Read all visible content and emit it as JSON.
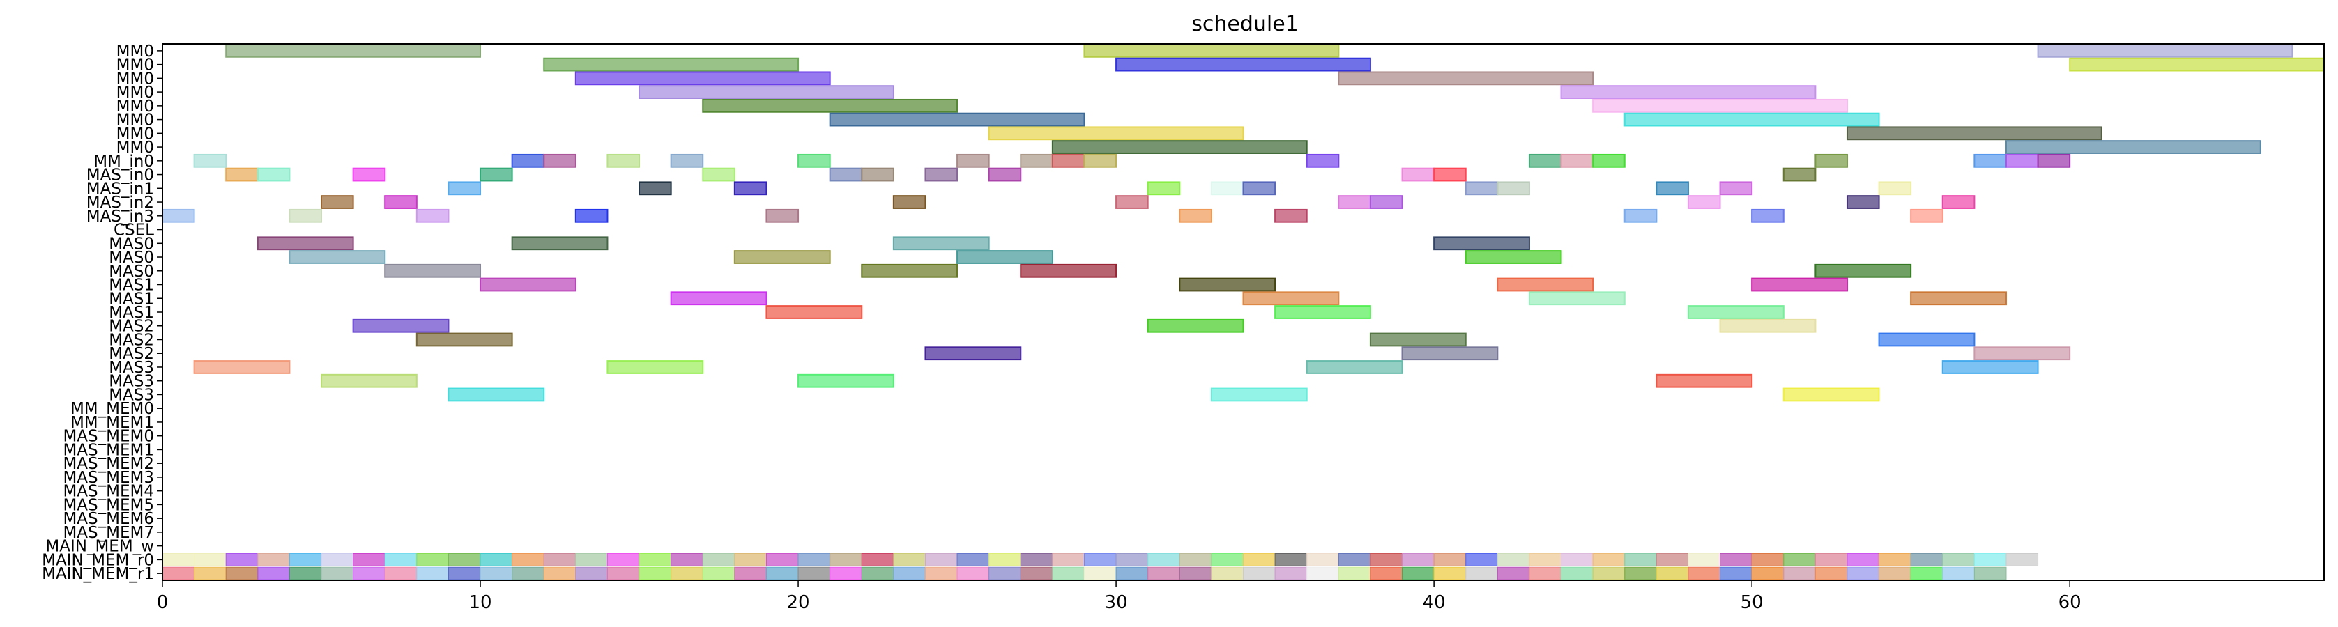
{
  "chart_data": {
    "type": "gantt",
    "title": "schedule1",
    "xlabel": "",
    "ylabel": "",
    "xlim": [
      0,
      68
    ],
    "xticks": [
      0,
      10,
      20,
      30,
      40,
      50,
      60
    ],
    "grid": false,
    "rows": [
      "MM0",
      "MM0",
      "MM0",
      "MM0",
      "MM0",
      "MM0",
      "MM0",
      "MM0",
      "MM_in0",
      "MAS_in0",
      "MAS_in1",
      "MAS_in2",
      "MAS_in3",
      "CSEL",
      "MAS0",
      "MAS0",
      "MAS0",
      "MAS1",
      "MAS1",
      "MAS1",
      "MAS2",
      "MAS2",
      "MAS2",
      "MAS3",
      "MAS3",
      "MAS3",
      "MM_MEM0",
      "MM_MEM1",
      "MAS_MEM0",
      "MAS_MEM1",
      "MAS_MEM2",
      "MAS_MEM3",
      "MAS_MEM4",
      "MAS_MEM5",
      "MAS_MEM6",
      "MAS_MEM7",
      "MAIN_MEM_w",
      "MAIN_MEM_r0",
      "MAIN_MEM_r1"
    ],
    "tasks": [
      {
        "row": 0,
        "start": 2,
        "end": 10,
        "color": "#88aa77"
      },
      {
        "row": 0,
        "start": 29,
        "end": 37,
        "color": "#b5cc44"
      },
      {
        "row": 0,
        "start": 59,
        "end": 67,
        "color": "#a8a8d8"
      },
      {
        "row": 1,
        "start": 12,
        "end": 20,
        "color": "#6ca855"
      },
      {
        "row": 1,
        "start": 30,
        "end": 38,
        "color": "#3434dd"
      },
      {
        "row": 1,
        "start": 60,
        "end": 68,
        "color": "#c8e045"
      },
      {
        "row": 2,
        "start": 13,
        "end": 21,
        "color": "#6a3ee8"
      },
      {
        "row": 2,
        "start": 37,
        "end": 45,
        "color": "#aa8888"
      },
      {
        "row": 3,
        "start": 15,
        "end": 23,
        "color": "#a48ae0"
      },
      {
        "row": 3,
        "start": 44,
        "end": 52,
        "color": "#c890ee"
      },
      {
        "row": 4,
        "start": 17,
        "end": 25,
        "color": "#558833"
      },
      {
        "row": 4,
        "start": 45,
        "end": 53,
        "color": "#f8b8f0"
      },
      {
        "row": 5,
        "start": 21,
        "end": 29,
        "color": "#3b6a99"
      },
      {
        "row": 5,
        "start": 46,
        "end": 54,
        "color": "#44e0dd"
      },
      {
        "row": 6,
        "start": 26,
        "end": 34,
        "color": "#e6d44c"
      },
      {
        "row": 6,
        "start": 53,
        "end": 61,
        "color": "#555f44"
      },
      {
        "row": 7,
        "start": 28,
        "end": 36,
        "color": "#3a6632"
      },
      {
        "row": 7,
        "start": 58,
        "end": 66,
        "color": "#5a8aa8"
      },
      {
        "row": 8,
        "start": 1,
        "end": 2,
        "color": "#a8e0d8"
      },
      {
        "row": 8,
        "start": 11,
        "end": 12,
        "color": "#3355dd"
      },
      {
        "row": 8,
        "start": 12,
        "end": 13,
        "color": "#aa5599"
      },
      {
        "row": 8,
        "start": 14,
        "end": 15,
        "color": "#b8e088"
      },
      {
        "row": 8,
        "start": 16,
        "end": 17,
        "color": "#88a8cc"
      },
      {
        "row": 8,
        "start": 20,
        "end": 21,
        "color": "#55dd77"
      },
      {
        "row": 8,
        "start": 25,
        "end": 26,
        "color": "#a88a88"
      },
      {
        "row": 8,
        "start": 27,
        "end": 28,
        "color": "#aa9988"
      },
      {
        "row": 8,
        "start": 28,
        "end": 29,
        "color": "#cc5555"
      },
      {
        "row": 8,
        "start": 29,
        "end": 30,
        "color": "#bbb055"
      },
      {
        "row": 8,
        "start": 36,
        "end": 37,
        "color": "#7744ee"
      },
      {
        "row": 8,
        "start": 43,
        "end": 44,
        "color": "#44aa77"
      },
      {
        "row": 8,
        "start": 44,
        "end": 45,
        "color": "#dd99aa"
      },
      {
        "row": 8,
        "start": 45,
        "end": 46,
        "color": "#44dd33"
      },
      {
        "row": 8,
        "start": 52,
        "end": 53,
        "color": "#779944"
      },
      {
        "row": 8,
        "start": 57,
        "end": 58,
        "color": "#5599ee"
      },
      {
        "row": 8,
        "start": 58,
        "end": 59,
        "color": "#aa55ee"
      },
      {
        "row": 8,
        "start": 59,
        "end": 60,
        "color": "#9933aa"
      },
      {
        "row": 9,
        "start": 2,
        "end": 3,
        "color": "#e8aa55"
      },
      {
        "row": 9,
        "start": 3,
        "end": 4,
        "color": "#88eecc"
      },
      {
        "row": 9,
        "start": 6,
        "end": 7,
        "color": "#ee44ee"
      },
      {
        "row": 9,
        "start": 10,
        "end": 11,
        "color": "#33aa77"
      },
      {
        "row": 9,
        "start": 17,
        "end": 18,
        "color": "#aaee77"
      },
      {
        "row": 9,
        "start": 21,
        "end": 22,
        "color": "#7788bb"
      },
      {
        "row": 9,
        "start": 22,
        "end": 23,
        "color": "#998877"
      },
      {
        "row": 9,
        "start": 24,
        "end": 25,
        "color": "#886699"
      },
      {
        "row": 9,
        "start": 26,
        "end": 27,
        "color": "#aa44aa"
      },
      {
        "row": 9,
        "start": 39,
        "end": 40,
        "color": "#ee88dd"
      },
      {
        "row": 9,
        "start": 40,
        "end": 41,
        "color": "#ff4455"
      },
      {
        "row": 9,
        "start": 51,
        "end": 52,
        "color": "#667733"
      },
      {
        "row": 10,
        "start": 9,
        "end": 10,
        "color": "#55aaee"
      },
      {
        "row": 10,
        "start": 15,
        "end": 16,
        "color": "#223344"
      },
      {
        "row": 10,
        "start": 18,
        "end": 19,
        "color": "#3322bb"
      },
      {
        "row": 10,
        "start": 31,
        "end": 32,
        "color": "#88ee44"
      },
      {
        "row": 10,
        "start": 33,
        "end": 34,
        "color": "#ddf8ee"
      },
      {
        "row": 10,
        "start": 34,
        "end": 35,
        "color": "#5566bb"
      },
      {
        "row": 10,
        "start": 41,
        "end": 42,
        "color": "#8899cc"
      },
      {
        "row": 10,
        "start": 42,
        "end": 43,
        "color": "#bbccbb"
      },
      {
        "row": 10,
        "start": 47,
        "end": 48,
        "color": "#3388bb"
      },
      {
        "row": 10,
        "start": 49,
        "end": 50,
        "color": "#cc66dd"
      },
      {
        "row": 10,
        "start": 54,
        "end": 55,
        "color": "#eeeeaa"
      },
      {
        "row": 11,
        "start": 5,
        "end": 6,
        "color": "#996633"
      },
      {
        "row": 11,
        "start": 7,
        "end": 8,
        "color": "#cc33cc"
      },
      {
        "row": 11,
        "start": 23,
        "end": 24,
        "color": "#7a5522"
      },
      {
        "row": 11,
        "start": 30,
        "end": 31,
        "color": "#cc6677"
      },
      {
        "row": 11,
        "start": 37,
        "end": 38,
        "color": "#dd77dd"
      },
      {
        "row": 11,
        "start": 38,
        "end": 39,
        "color": "#aa55dd"
      },
      {
        "row": 11,
        "start": 48,
        "end": 49,
        "color": "#ee99ee"
      },
      {
        "row": 11,
        "start": 53,
        "end": 54,
        "color": "#443377"
      },
      {
        "row": 11,
        "start": 56,
        "end": 57,
        "color": "#ee44aa"
      },
      {
        "row": 12,
        "start": 0,
        "end": 1,
        "color": "#99bbee"
      },
      {
        "row": 12,
        "start": 4,
        "end": 5,
        "color": "#ccddbb"
      },
      {
        "row": 12,
        "start": 8,
        "end": 9,
        "color": "#cc99ee"
      },
      {
        "row": 12,
        "start": 13,
        "end": 14,
        "color": "#2233ee"
      },
      {
        "row": 12,
        "start": 19,
        "end": 20,
        "color": "#aa7788"
      },
      {
        "row": 12,
        "start": 32,
        "end": 33,
        "color": "#ee9955"
      },
      {
        "row": 12,
        "start": 35,
        "end": 36,
        "color": "#bb4466"
      },
      {
        "row": 12,
        "start": 46,
        "end": 47,
        "color": "#77aaee"
      },
      {
        "row": 12,
        "start": 50,
        "end": 51,
        "color": "#6677ee"
      },
      {
        "row": 12,
        "start": 55,
        "end": 56,
        "color": "#ff9988"
      },
      {
        "row": 14,
        "start": 3,
        "end": 6,
        "color": "#884477"
      },
      {
        "row": 14,
        "start": 11,
        "end": 14,
        "color": "#446644"
      },
      {
        "row": 14,
        "start": 23,
        "end": 26,
        "color": "#66aaaa"
      },
      {
        "row": 14,
        "start": 40,
        "end": 43,
        "color": "#334466"
      },
      {
        "row": 15,
        "start": 4,
        "end": 7,
        "color": "#77aabb"
      },
      {
        "row": 15,
        "start": 18,
        "end": 21,
        "color": "#999944"
      },
      {
        "row": 15,
        "start": 25,
        "end": 28,
        "color": "#449999"
      },
      {
        "row": 15,
        "start": 41,
        "end": 44,
        "color": "#44cc22"
      },
      {
        "row": 16,
        "start": 7,
        "end": 10,
        "color": "#888899"
      },
      {
        "row": 16,
        "start": 22,
        "end": 25,
        "color": "#667722"
      },
      {
        "row": 16,
        "start": 27,
        "end": 30,
        "color": "#992233"
      },
      {
        "row": 16,
        "start": 52,
        "end": 55,
        "color": "#337722"
      },
      {
        "row": 17,
        "start": 10,
        "end": 13,
        "color": "#bb44bb"
      },
      {
        "row": 17,
        "start": 32,
        "end": 35,
        "color": "#444411"
      },
      {
        "row": 17,
        "start": 42,
        "end": 45,
        "color": "#ee6644"
      },
      {
        "row": 17,
        "start": 50,
        "end": 53,
        "color": "#cc22aa"
      },
      {
        "row": 18,
        "start": 16,
        "end": 19,
        "color": "#cc33ee"
      },
      {
        "row": 18,
        "start": 34,
        "end": 37,
        "color": "#dd8844"
      },
      {
        "row": 18,
        "start": 43,
        "end": 46,
        "color": "#99eebb"
      },
      {
        "row": 18,
        "start": 55,
        "end": 58,
        "color": "#cc7733"
      },
      {
        "row": 19,
        "start": 19,
        "end": 22,
        "color": "#ee5544"
      },
      {
        "row": 19,
        "start": 35,
        "end": 38,
        "color": "#55ee55"
      },
      {
        "row": 19,
        "start": 48,
        "end": 51,
        "color": "#77ee99"
      },
      {
        "row": 20,
        "start": 6,
        "end": 9,
        "color": "#6644cc"
      },
      {
        "row": 20,
        "start": 31,
        "end": 34,
        "color": "#44cc22"
      },
      {
        "row": 20,
        "start": 49,
        "end": 52,
        "color": "#e6e0a0"
      },
      {
        "row": 21,
        "start": 8,
        "end": 11,
        "color": "#776633"
      },
      {
        "row": 21,
        "start": 38,
        "end": 41,
        "color": "#557744"
      },
      {
        "row": 21,
        "start": 54,
        "end": 57,
        "color": "#3377ee"
      },
      {
        "row": 22,
        "start": 24,
        "end": 27,
        "color": "#442299"
      },
      {
        "row": 22,
        "start": 39,
        "end": 42,
        "color": "#777799"
      },
      {
        "row": 22,
        "start": 57,
        "end": 60,
        "color": "#cc99aa"
      },
      {
        "row": 23,
        "start": 1,
        "end": 4,
        "color": "#f39a7a"
      },
      {
        "row": 23,
        "start": 14,
        "end": 17,
        "color": "#99ee55"
      },
      {
        "row": 23,
        "start": 36,
        "end": 39,
        "color": "#66bbaa"
      },
      {
        "row": 23,
        "start": 56,
        "end": 59,
        "color": "#44aaee"
      },
      {
        "row": 24,
        "start": 5,
        "end": 8,
        "color": "#bbdd77"
      },
      {
        "row": 24,
        "start": 20,
        "end": 23,
        "color": "#55ee77"
      },
      {
        "row": 24,
        "start": 47,
        "end": 50,
        "color": "#ee5544"
      },
      {
        "row": 25,
        "start": 9,
        "end": 12,
        "color": "#44dddd"
      },
      {
        "row": 25,
        "start": 33,
        "end": 36,
        "color": "#66eedd"
      },
      {
        "row": 25,
        "start": 51,
        "end": 54,
        "color": "#eeee44"
      }
    ],
    "mem_rows": [
      {
        "row": 37,
        "colors": [
          "#eeeebb",
          "#eeeebb",
          "#aa55ee",
          "#ddaa99",
          "#55bbee",
          "#ccccee",
          "#cc44cc",
          "#77ddee",
          "#88dd55",
          "#77bb55",
          "#44cccc",
          "#ee9955",
          "#cc8899",
          "#aaccaa",
          "#ee55ee",
          "#99ee55",
          "#bb55bb",
          "#aaccaa",
          "#ddbb77",
          "#cc55cc",
          "#7799cc",
          "#bbaa88",
          "#cc4466",
          "#cccc77",
          "#ccaacc",
          "#6677cc",
          "#ddee77",
          "#886699",
          "#ddaaaa",
          "#7788ee",
          "#9999cc",
          "#88dddd",
          "#bbbb99",
          "#77ee77",
          "#eecc55",
          "#666666",
          "#eeddcc",
          "#6677bb",
          "#cc5555",
          "#cc88cc",
          "#dd9977",
          "#5566ee",
          "#ccddbb",
          "#eecc99",
          "#ddbbdd",
          "#eebb77",
          "#88ccaa",
          "#cc8888",
          "#eeeecc",
          "#bb55bb",
          "#dd7744",
          "#77bb55",
          "#dd8899",
          "#cc55ee",
          "#eeaa55",
          "#7799aa",
          "#99ccaa",
          "#88eeee",
          "#cccccc"
        ]
      },
      {
        "row": 38,
        "colors": [
          "#ee7788",
          "#eebb55",
          "#bb7744",
          "#aa55ee",
          "#449966",
          "#99bbaa",
          "#cc66ee",
          "#ee88aa",
          "#99ccee",
          "#5566cc",
          "#88bbdd",
          "#77aa99",
          "#eeaa66",
          "#aa88cc",
          "#dd77aa",
          "#99ee55",
          "#ddcc55",
          "#aaee77",
          "#cc66aa",
          "#66aacc",
          "#888888",
          "#ee55ee",
          "#66aa77",
          "#77aadd",
          "#eeaa88",
          "#ee88cc",
          "#8888cc",
          "#aa6677",
          "#99ddaa",
          "#eeeecc",
          "#6699cc",
          "#cc77aa",
          "#aa6699",
          "#dddd99",
          "#cccccc",
          "#cc99cc",
          "#eeeeee",
          "#ccee99",
          "#ee6644",
          "#44aa55",
          "#eecc44",
          "#cccccc",
          "#bb55bb",
          "#ee8888",
          "#88ddaa",
          "#cccc66",
          "#77aa44",
          "#ddcc44",
          "#ee7755",
          "#5577dd",
          "#ee8833",
          "#cc99aa",
          "#ee8855",
          "#9999ee",
          "#ddaa77",
          "#55ee55",
          "#99ccee",
          "#88bb99"
        ]
      }
    ]
  }
}
